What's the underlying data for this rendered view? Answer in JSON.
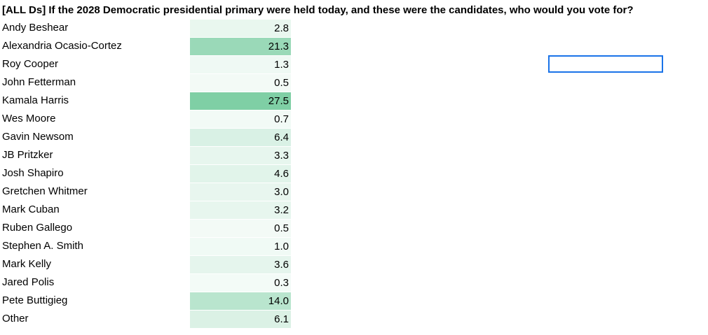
{
  "title": "[ALL Ds] If the 2028 Democratic presidential primary were held today, and these were the candidates, who would you vote for?",
  "candidates": [
    {
      "name": "Andy Beshear",
      "value": "2.8"
    },
    {
      "name": "Alexandria Ocasio-Cortez",
      "value": "21.3"
    },
    {
      "name": "Roy Cooper",
      "value": "1.3"
    },
    {
      "name": "John Fetterman",
      "value": "0.5"
    },
    {
      "name": "Kamala Harris",
      "value": "27.5"
    },
    {
      "name": "Wes Moore",
      "value": "0.7"
    },
    {
      "name": "Gavin Newsom",
      "value": "6.4"
    },
    {
      "name": "JB Pritzker",
      "value": "3.3"
    },
    {
      "name": "Josh Shapiro",
      "value": "4.6"
    },
    {
      "name": "Gretchen Whitmer",
      "value": "3.0"
    },
    {
      "name": "Mark Cuban",
      "value": "3.2"
    },
    {
      "name": "Ruben Gallego",
      "value": "0.5"
    },
    {
      "name": "Stephen A. Smith",
      "value": "1.0"
    },
    {
      "name": "Mark Kelly",
      "value": "3.6"
    },
    {
      "name": "Jared Polis",
      "value": "0.3"
    },
    {
      "name": "Pete Buttigieg",
      "value": "14.0"
    },
    {
      "name": "Other",
      "value": "6.1"
    }
  ],
  "colors": {
    "heat_low": "#ffffff",
    "heat_high": "#7fcfa5",
    "selection_border": "#1a73e8"
  },
  "heat_max": 27.5
}
